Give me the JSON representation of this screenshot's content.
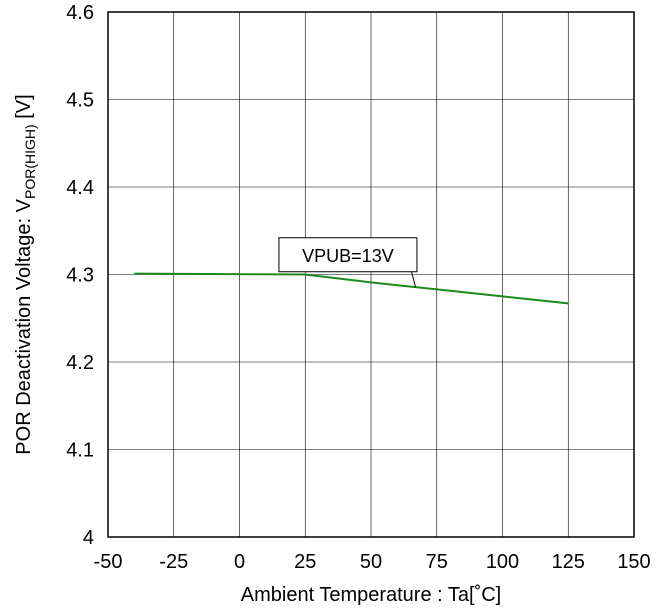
{
  "chart_data": {
    "type": "line",
    "xlabel": "Ambient Temperature : Ta[˚C]",
    "ylabel": {
      "prefix": "POR Deactivation Voltage: V",
      "subscript": "POR(HIGH)",
      "suffix": " [V]"
    },
    "xlim": [
      -50,
      150
    ],
    "ylim": [
      4.0,
      4.6
    ],
    "xticks": [
      -50,
      -25,
      0,
      25,
      50,
      75,
      100,
      125,
      150
    ],
    "xtick_labels": [
      "-50",
      "-25",
      "0",
      "25",
      "50",
      "75",
      "100",
      "125",
      "150"
    ],
    "yticks": [
      4.0,
      4.1,
      4.2,
      4.3,
      4.4,
      4.5,
      4.6
    ],
    "ytick_labels": [
      "4",
      "4.1",
      "4.2",
      "4.3",
      "4.4",
      "4.5",
      "4.6"
    ],
    "grid": true,
    "series": [
      {
        "name": "VPUB=13V",
        "color": "#1e8a1e",
        "x": [
          -40,
          25,
          50,
          75,
          100,
          125
        ],
        "y": [
          4.301,
          4.3,
          4.291,
          4.283,
          4.275,
          4.267
        ]
      }
    ],
    "annotations": [
      {
        "text": "VPUB=13V",
        "series": 0,
        "point_to": [
          67,
          4.285
        ],
        "box_anchor": [
          15,
          4.342
        ]
      }
    ]
  }
}
